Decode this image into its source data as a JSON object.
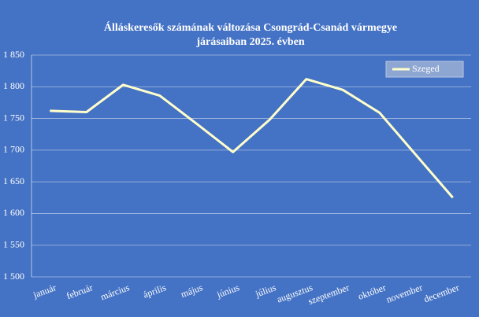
{
  "chart_data": {
    "type": "line",
    "title": [
      "Álláskeresők számának változása Csongrád-Csanád vármegye",
      "járásaiban 2025. évben"
    ],
    "categories": [
      "január",
      "február",
      "március",
      "április",
      "május",
      "június",
      "július",
      "augusztus",
      "szeptember",
      "október",
      "november",
      "december"
    ],
    "series": [
      {
        "name": "Szeged",
        "color": "#ffffcc",
        "values": [
          1762,
          1760,
          1803,
          1786,
          1742,
          1697,
          1748,
          1812,
          1795,
          1759,
          1692,
          1625
        ]
      }
    ],
    "ylim": [
      1500,
      1850
    ],
    "yticks": [
      {
        "value": 1500,
        "label": "1 500"
      },
      {
        "value": 1550,
        "label": "1 550"
      },
      {
        "value": 1600,
        "label": "1 600"
      },
      {
        "value": 1650,
        "label": "1 650"
      },
      {
        "value": 1700,
        "label": "1 700"
      },
      {
        "value": 1750,
        "label": "1 750"
      },
      {
        "value": 1800,
        "label": "1 800"
      },
      {
        "value": 1850,
        "label": "1 850"
      }
    ],
    "grid": true,
    "legend": "top-right",
    "background": "#4472c4"
  }
}
